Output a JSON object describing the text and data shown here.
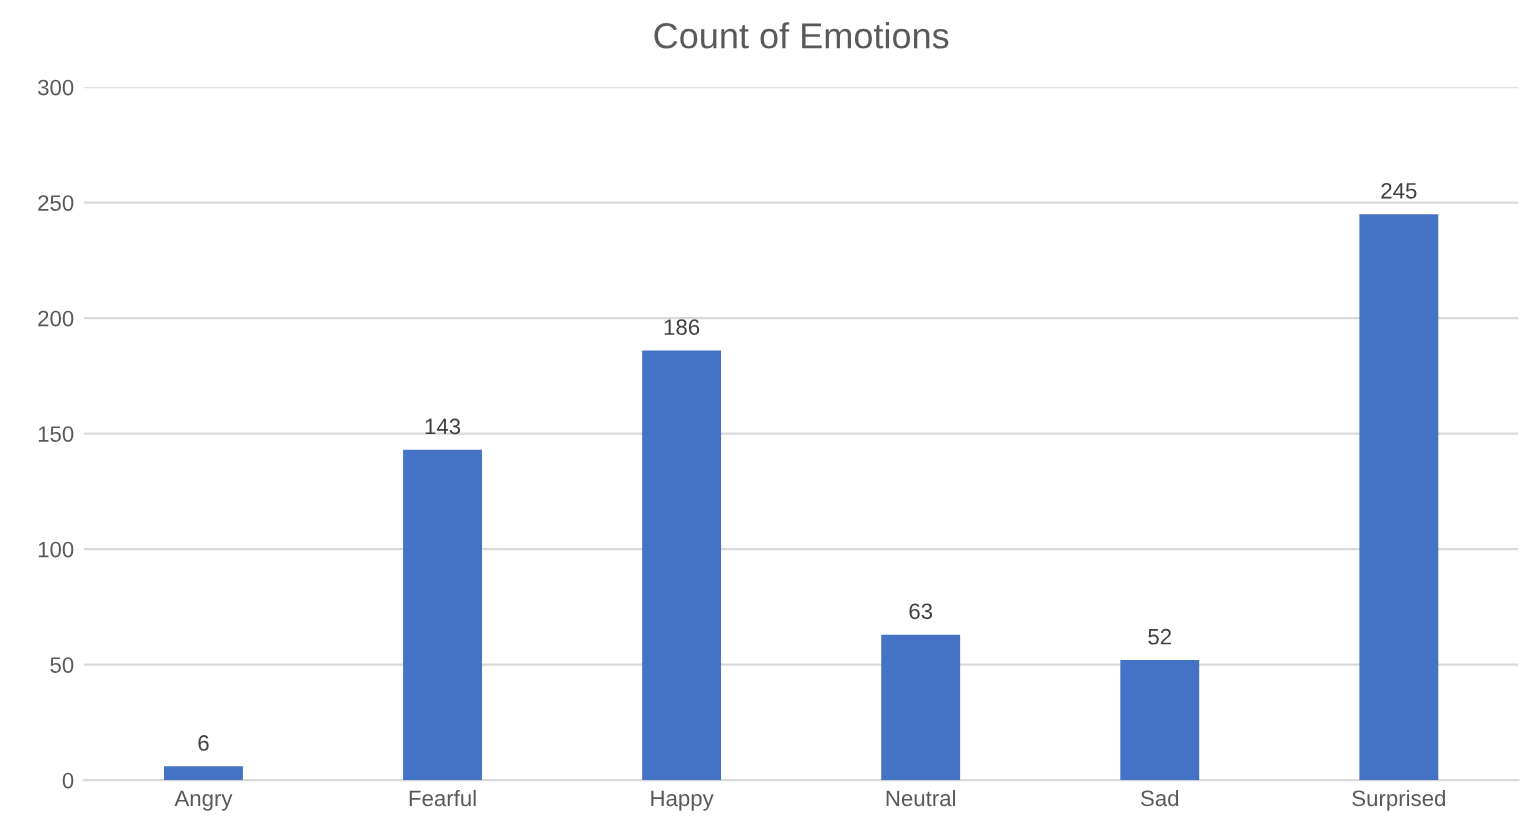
{
  "chart_data": {
    "type": "bar",
    "title": "Count of Emotions",
    "categories": [
      "Angry",
      "Fearful",
      "Happy",
      "Neutral",
      "Sad",
      "Surprised"
    ],
    "values": [
      6,
      143,
      186,
      63,
      52,
      245
    ],
    "color": "#4472c4",
    "ylim": [
      0,
      300
    ],
    "yticks": [
      0,
      50,
      100,
      150,
      200,
      250,
      300
    ],
    "grid": "y",
    "data_labels": true
  }
}
